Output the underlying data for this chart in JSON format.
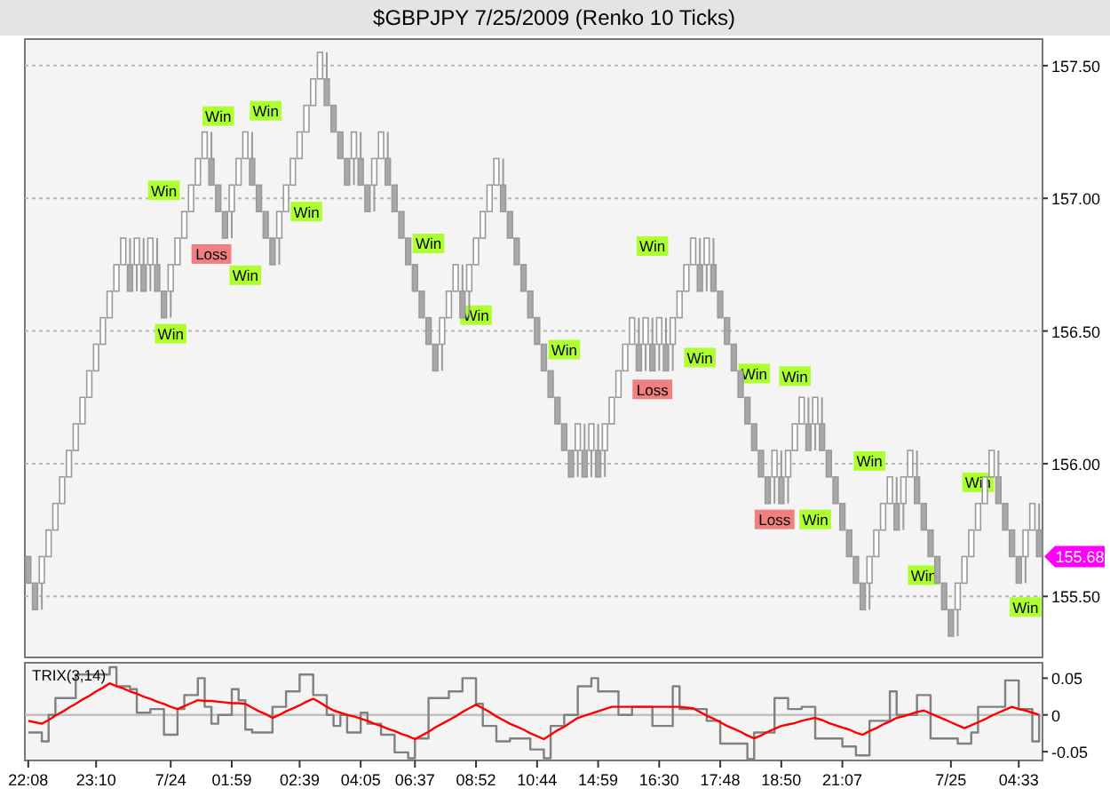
{
  "chart_data": [
    {
      "type": "candlestick",
      "title": "$GBPJPY  7/25/2009 (Renko 10 Ticks)",
      "categories": [
        null,
        null,
        null,
        null,
        null,
        null,
        null,
        null,
        null,
        null,
        null,
        null,
        null,
        null,
        null,
        null,
        null,
        null,
        null,
        null,
        null,
        null,
        null,
        null,
        null,
        null,
        null,
        null,
        null,
        null,
        null,
        null,
        null,
        null,
        null,
        null,
        null,
        null,
        null,
        null,
        null,
        null,
        null,
        null,
        null,
        null,
        null,
        null,
        null,
        null,
        null,
        null,
        null,
        null,
        null,
        null,
        null,
        null,
        null,
        null,
        null,
        null,
        null,
        null,
        null,
        null,
        null,
        null,
        null,
        null,
        null,
        null,
        null,
        null,
        null,
        null,
        null,
        null,
        null,
        null,
        null,
        null,
        null,
        null,
        null,
        null,
        null,
        null,
        null,
        null,
        null,
        null,
        null,
        null,
        null,
        null,
        null,
        null,
        null,
        null,
        null,
        null,
        null,
        null,
        null,
        null,
        null,
        null,
        null,
        null,
        null,
        null,
        null,
        null,
        null,
        null,
        null,
        null,
        null,
        null,
        null,
        null,
        null,
        null,
        null,
        null,
        null,
        null,
        null,
        null,
        null,
        null,
        null,
        null,
        null,
        null,
        null,
        null,
        null,
        null,
        null,
        null,
        null,
        null,
        null,
        null,
        null,
        null,
        null,
        null
      ],
      "ohlc": [
        [
          155.65,
          155.65,
          155.55,
          155.55
        ],
        [
          155.55,
          155.55,
          155.45,
          155.45
        ],
        [
          155.55,
          155.65,
          155.45,
          155.65
        ],
        [
          155.65,
          155.75,
          155.65,
          155.75
        ],
        [
          155.75,
          155.85,
          155.75,
          155.85
        ],
        [
          155.85,
          155.95,
          155.85,
          155.95
        ],
        [
          155.95,
          156.05,
          155.95,
          156.05
        ],
        [
          156.05,
          156.15,
          156.05,
          156.15
        ],
        [
          156.15,
          156.25,
          156.15,
          156.25
        ],
        [
          156.25,
          156.35,
          156.25,
          156.35
        ],
        [
          156.35,
          156.45,
          156.35,
          156.45
        ],
        [
          156.45,
          156.55,
          156.45,
          156.55
        ],
        [
          156.55,
          156.65,
          156.55,
          156.65
        ],
        [
          156.65,
          156.75,
          156.65,
          156.75
        ],
        [
          156.75,
          156.85,
          156.75,
          156.85
        ],
        [
          156.75,
          156.85,
          156.65,
          156.65
        ],
        [
          156.75,
          156.85,
          156.65,
          156.85
        ],
        [
          156.75,
          156.85,
          156.65,
          156.65
        ],
        [
          156.75,
          156.85,
          156.65,
          156.85
        ],
        [
          156.75,
          156.85,
          156.65,
          156.65
        ],
        [
          156.65,
          156.65,
          156.55,
          156.55
        ],
        [
          156.65,
          156.75,
          156.55,
          156.75
        ],
        [
          156.75,
          156.85,
          156.75,
          156.85
        ],
        [
          156.85,
          156.95,
          156.85,
          156.95
        ],
        [
          156.95,
          157.05,
          156.95,
          157.05
        ],
        [
          157.05,
          157.15,
          157.05,
          157.15
        ],
        [
          157.15,
          157.25,
          157.15,
          157.25
        ],
        [
          157.15,
          157.25,
          157.05,
          157.05
        ],
        [
          157.05,
          157.05,
          156.95,
          156.95
        ],
        [
          156.95,
          156.95,
          156.85,
          156.85
        ],
        [
          156.95,
          157.05,
          156.85,
          157.05
        ],
        [
          157.05,
          157.15,
          157.05,
          157.15
        ],
        [
          157.15,
          157.25,
          157.15,
          157.25
        ],
        [
          157.15,
          157.25,
          157.05,
          157.05
        ],
        [
          157.05,
          157.05,
          156.95,
          156.95
        ],
        [
          156.95,
          156.95,
          156.85,
          156.85
        ],
        [
          156.85,
          156.85,
          156.75,
          156.75
        ],
        [
          156.85,
          156.95,
          156.75,
          156.95
        ],
        [
          156.95,
          157.05,
          156.95,
          157.05
        ],
        [
          157.05,
          157.15,
          157.05,
          157.15
        ],
        [
          157.15,
          157.25,
          157.15,
          157.25
        ],
        [
          157.25,
          157.35,
          157.25,
          157.35
        ],
        [
          157.35,
          157.45,
          157.35,
          157.45
        ],
        [
          157.45,
          157.55,
          157.45,
          157.55
        ],
        [
          157.45,
          157.55,
          157.35,
          157.35
        ],
        [
          157.35,
          157.35,
          157.25,
          157.25
        ],
        [
          157.25,
          157.25,
          157.15,
          157.15
        ],
        [
          157.15,
          157.15,
          157.05,
          157.05
        ],
        [
          157.15,
          157.25,
          157.05,
          157.25
        ],
        [
          157.15,
          157.25,
          157.05,
          157.05
        ],
        [
          157.05,
          157.05,
          156.95,
          156.95
        ],
        [
          157.05,
          157.15,
          156.95,
          157.15
        ],
        [
          157.15,
          157.25,
          157.15,
          157.25
        ],
        [
          157.15,
          157.25,
          157.05,
          157.05
        ],
        [
          157.05,
          157.05,
          156.95,
          156.95
        ],
        [
          156.95,
          156.95,
          156.85,
          156.85
        ],
        [
          156.85,
          156.85,
          156.75,
          156.75
        ],
        [
          156.75,
          156.75,
          156.65,
          156.65
        ],
        [
          156.65,
          156.65,
          156.55,
          156.55
        ],
        [
          156.55,
          156.55,
          156.45,
          156.45
        ],
        [
          156.45,
          156.45,
          156.35,
          156.35
        ],
        [
          156.45,
          156.55,
          156.35,
          156.55
        ],
        [
          156.55,
          156.65,
          156.55,
          156.65
        ],
        [
          156.65,
          156.75,
          156.65,
          156.75
        ],
        [
          156.65,
          156.75,
          156.55,
          156.55
        ],
        [
          156.65,
          156.75,
          156.55,
          156.75
        ],
        [
          156.75,
          156.85,
          156.75,
          156.85
        ],
        [
          156.85,
          156.95,
          156.85,
          156.95
        ],
        [
          156.95,
          157.05,
          156.95,
          157.05
        ],
        [
          157.05,
          157.15,
          157.05,
          157.15
        ],
        [
          157.05,
          157.15,
          156.95,
          156.95
        ],
        [
          156.95,
          156.95,
          156.85,
          156.85
        ],
        [
          156.85,
          156.85,
          156.75,
          156.75
        ],
        [
          156.75,
          156.75,
          156.65,
          156.65
        ],
        [
          156.65,
          156.65,
          156.55,
          156.55
        ],
        [
          156.55,
          156.55,
          156.45,
          156.45
        ],
        [
          156.45,
          156.45,
          156.35,
          156.35
        ],
        [
          156.35,
          156.35,
          156.25,
          156.25
        ],
        [
          156.25,
          156.25,
          156.15,
          156.15
        ],
        [
          156.15,
          156.15,
          156.05,
          156.05
        ],
        [
          156.05,
          156.05,
          155.95,
          155.95
        ],
        [
          156.05,
          156.15,
          155.95,
          156.15
        ],
        [
          156.05,
          156.15,
          155.95,
          155.95
        ],
        [
          156.05,
          156.15,
          155.95,
          156.15
        ],
        [
          156.05,
          156.15,
          155.95,
          155.95
        ],
        [
          156.05,
          156.15,
          155.95,
          156.15
        ],
        [
          156.15,
          156.25,
          156.15,
          156.25
        ],
        [
          156.25,
          156.35,
          156.25,
          156.35
        ],
        [
          156.35,
          156.45,
          156.35,
          156.45
        ],
        [
          156.45,
          156.55,
          156.45,
          156.55
        ],
        [
          156.45,
          156.55,
          156.35,
          156.35
        ],
        [
          156.45,
          156.55,
          156.35,
          156.55
        ],
        [
          156.45,
          156.55,
          156.35,
          156.35
        ],
        [
          156.45,
          156.55,
          156.35,
          156.55
        ],
        [
          156.45,
          156.55,
          156.35,
          156.35
        ],
        [
          156.45,
          156.55,
          156.35,
          156.55
        ],
        [
          156.55,
          156.65,
          156.55,
          156.65
        ],
        [
          156.65,
          156.75,
          156.65,
          156.75
        ],
        [
          156.75,
          156.85,
          156.75,
          156.85
        ],
        [
          156.75,
          156.85,
          156.65,
          156.65
        ],
        [
          156.75,
          156.85,
          156.65,
          156.85
        ],
        [
          156.75,
          156.85,
          156.65,
          156.65
        ],
        [
          156.65,
          156.65,
          156.55,
          156.55
        ],
        [
          156.55,
          156.55,
          156.45,
          156.45
        ],
        [
          156.45,
          156.45,
          156.35,
          156.35
        ],
        [
          156.35,
          156.35,
          156.25,
          156.25
        ],
        [
          156.25,
          156.25,
          156.15,
          156.15
        ],
        [
          156.15,
          156.15,
          156.05,
          156.05
        ],
        [
          156.05,
          156.05,
          155.95,
          155.95
        ],
        [
          155.95,
          155.95,
          155.85,
          155.85
        ],
        [
          155.95,
          156.05,
          155.85,
          156.05
        ],
        [
          155.95,
          156.05,
          155.85,
          155.85
        ],
        [
          155.95,
          156.05,
          155.85,
          156.05
        ],
        [
          156.05,
          156.15,
          156.05,
          156.15
        ],
        [
          156.15,
          156.25,
          156.15,
          156.25
        ],
        [
          156.15,
          156.25,
          156.05,
          156.05
        ],
        [
          156.15,
          156.25,
          156.05,
          156.25
        ],
        [
          156.15,
          156.25,
          156.05,
          156.05
        ],
        [
          156.05,
          156.05,
          155.95,
          155.95
        ],
        [
          155.95,
          155.95,
          155.85,
          155.85
        ],
        [
          155.85,
          155.85,
          155.75,
          155.75
        ],
        [
          155.75,
          155.75,
          155.65,
          155.65
        ],
        [
          155.65,
          155.65,
          155.55,
          155.55
        ],
        [
          155.55,
          155.55,
          155.45,
          155.45
        ],
        [
          155.55,
          155.65,
          155.45,
          155.65
        ],
        [
          155.65,
          155.75,
          155.65,
          155.75
        ],
        [
          155.75,
          155.85,
          155.75,
          155.85
        ],
        [
          155.85,
          155.95,
          155.85,
          155.95
        ],
        [
          155.85,
          155.95,
          155.75,
          155.75
        ],
        [
          155.85,
          155.95,
          155.75,
          155.95
        ],
        [
          155.95,
          156.05,
          155.95,
          156.05
        ],
        [
          155.95,
          156.05,
          155.85,
          155.85
        ],
        [
          155.85,
          155.85,
          155.75,
          155.75
        ],
        [
          155.75,
          155.75,
          155.65,
          155.65
        ],
        [
          155.65,
          155.65,
          155.55,
          155.55
        ],
        [
          155.55,
          155.55,
          155.45,
          155.45
        ],
        [
          155.45,
          155.45,
          155.35,
          155.35
        ],
        [
          155.45,
          155.55,
          155.35,
          155.55
        ],
        [
          155.55,
          155.65,
          155.55,
          155.65
        ],
        [
          155.65,
          155.75,
          155.65,
          155.75
        ],
        [
          155.75,
          155.85,
          155.75,
          155.85
        ],
        [
          155.85,
          155.95,
          155.85,
          155.95
        ],
        [
          155.95,
          156.05,
          155.95,
          156.05
        ],
        [
          155.95,
          156.05,
          155.85,
          155.85
        ],
        [
          155.85,
          155.85,
          155.75,
          155.75
        ],
        [
          155.75,
          155.75,
          155.65,
          155.65
        ],
        [
          155.65,
          155.65,
          155.55,
          155.55
        ],
        [
          155.65,
          155.75,
          155.55,
          155.75
        ],
        [
          155.75,
          155.85,
          155.75,
          155.85
        ],
        [
          155.75,
          155.85,
          155.65,
          155.65
        ]
      ],
      "series": [
        {
          "type": "scatter",
          "name": "Win",
          "color": "#adff2f",
          "values": [
            null,
            null,
            null,
            null,
            null,
            null,
            null,
            null,
            null,
            null,
            null,
            null,
            null,
            null,
            null,
            null,
            null,
            null,
            null,
            null,
            157.03,
            156.49,
            null,
            null,
            null,
            null,
            null,
            null,
            157.31,
            null,
            null,
            null,
            156.71,
            null,
            null,
            157.33,
            null,
            null,
            null,
            null,
            null,
            156.95,
            null,
            null,
            null,
            null,
            null,
            null,
            null,
            null,
            null,
            null,
            null,
            null,
            null,
            null,
            null,
            null,
            null,
            156.83,
            null,
            null,
            null,
            null,
            null,
            null,
            156.56,
            null,
            null,
            null,
            null,
            null,
            null,
            null,
            null,
            null,
            null,
            null,
            null,
            156.43,
            null,
            null,
            null,
            null,
            null,
            null,
            null,
            null,
            null,
            null,
            null,
            null,
            156.82,
            null,
            null,
            null,
            null,
            null,
            null,
            156.4,
            null,
            null,
            null,
            null,
            null,
            null,
            null,
            156.34,
            null,
            null,
            null,
            null,
            null,
            156.33,
            null,
            null,
            155.79,
            null,
            null,
            null,
            null,
            null,
            null,
            null,
            156.01,
            null,
            null,
            null,
            null,
            null,
            null,
            null,
            155.58,
            null,
            null,
            null,
            null,
            null,
            null,
            null,
            155.93,
            null,
            null,
            null,
            null,
            null,
            null,
            155.46,
            null,
            null
          ]
        },
        {
          "type": "scatter",
          "name": "Loss",
          "color": "#f08080",
          "values": [
            null,
            null,
            null,
            null,
            null,
            null,
            null,
            null,
            null,
            null,
            null,
            null,
            null,
            null,
            null,
            null,
            null,
            null,
            null,
            null,
            null,
            null,
            null,
            null,
            null,
            null,
            null,
            156.79,
            null,
            null,
            null,
            null,
            null,
            null,
            null,
            null,
            null,
            null,
            null,
            null,
            null,
            null,
            null,
            null,
            null,
            null,
            null,
            null,
            null,
            null,
            null,
            null,
            null,
            null,
            null,
            null,
            null,
            null,
            null,
            null,
            null,
            null,
            null,
            null,
            null,
            null,
            null,
            null,
            null,
            null,
            null,
            null,
            null,
            null,
            null,
            null,
            null,
            null,
            null,
            null,
            null,
            null,
            null,
            null,
            null,
            null,
            null,
            null,
            null,
            null,
            null,
            null,
            156.28,
            null,
            null,
            null,
            null,
            null,
            null,
            null,
            null,
            null,
            null,
            null,
            null,
            null,
            null,
            null,
            null,
            null,
            155.79,
            null,
            null,
            null,
            null,
            null,
            null,
            null,
            null,
            null,
            null,
            null,
            null,
            null,
            null,
            null,
            null,
            null,
            null,
            null,
            null,
            null,
            null,
            null,
            null,
            null,
            null,
            null,
            null,
            null,
            null,
            null,
            null,
            null,
            null,
            null,
            null,
            null,
            null,
            null
          ]
        }
      ],
      "ylim": [
        155.27,
        157.6
      ],
      "yticks": [
        {
          "value": 155.5,
          "label": "155.50"
        },
        {
          "value": 156,
          "label": "156.00"
        },
        {
          "value": 156.5,
          "label": "156.50"
        },
        {
          "value": 157,
          "label": "157.00"
        },
        {
          "value": 157.5,
          "label": "157.50"
        }
      ],
      "grid": "y",
      "tick_labels": "y",
      "annotations": [
        "155.68"
      ]
    },
    {
      "type": "step",
      "title": "TRIX(3,14)",
      "categories": [
        "22:08",
        null,
        null,
        null,
        null,
        null,
        null,
        null,
        null,
        null,
        "23:10",
        null,
        null,
        null,
        null,
        null,
        null,
        null,
        null,
        null,
        null,
        "7/24",
        null,
        null,
        null,
        null,
        null,
        null,
        null,
        null,
        "01:59",
        null,
        null,
        null,
        null,
        null,
        null,
        null,
        null,
        null,
        "02:39",
        null,
        null,
        null,
        null,
        null,
        null,
        null,
        null,
        "04:05",
        null,
        null,
        null,
        null,
        null,
        null,
        null,
        "06:37",
        null,
        null,
        null,
        null,
        null,
        null,
        null,
        null,
        "08:52",
        null,
        null,
        null,
        null,
        null,
        null,
        null,
        null,
        "10:44",
        null,
        null,
        null,
        null,
        null,
        null,
        null,
        null,
        "14:59",
        null,
        null,
        null,
        null,
        null,
        null,
        null,
        null,
        "16:30",
        null,
        null,
        null,
        null,
        null,
        null,
        null,
        null,
        "17:48",
        null,
        null,
        null,
        null,
        null,
        null,
        null,
        null,
        "18:50",
        null,
        null,
        null,
        null,
        null,
        null,
        null,
        null,
        "21:07",
        null,
        null,
        null,
        null,
        null,
        null,
        null,
        null,
        null,
        null,
        null,
        null,
        null,
        null,
        null,
        "7/25",
        null,
        null,
        null,
        null,
        null,
        null,
        null,
        null,
        null,
        "04:33",
        null,
        null,
        null
      ],
      "series": [
        {
          "color": "#808080",
          "values": [
            -0.024,
            -0.024,
            -0.036,
            0,
            0.023,
            0.023,
            0.023,
            0.055,
            0.055,
            0.055,
            0.055,
            0.055,
            0.065,
            0.039,
            0.039,
            0.035,
            0.003,
            0.003,
            0.008,
            0.008,
            -0.027,
            -0.027,
            0.008,
            0.027,
            0.027,
            0.05,
            0.011,
            -0.012,
            0,
            0,
            0.035,
            0.02,
            -0.02,
            -0.024,
            -0.024,
            -0.024,
            0.011,
            0.011,
            0.032,
            0.032,
            0.055,
            0.055,
            0.027,
            0.027,
            0,
            -0.015,
            0,
            -0.024,
            -0.024,
            0.003,
            -0.012,
            -0.012,
            -0.027,
            -0.027,
            -0.051,
            -0.051,
            -0.059,
            -0.032,
            -0.032,
            0.023,
            0.023,
            0.023,
            0.032,
            0.032,
            0.05,
            0.05,
            0.015,
            -0.015,
            -0.015,
            -0.036,
            -0.036,
            -0.032,
            -0.032,
            -0.032,
            -0.047,
            -0.047,
            -0.059,
            -0.015,
            -0.015,
            0,
            0,
            0.039,
            0.039,
            0.05,
            0.032,
            0.032,
            0.032,
            0,
            0,
            0.011,
            0.011,
            0.011,
            -0.015,
            -0.015,
            -0.015,
            0.039,
            0.008,
            0.008,
            0.008,
            0.008,
            -0.008,
            -0.008,
            -0.039,
            -0.039,
            -0.039,
            -0.039,
            -0.06,
            -0.024,
            -0.024,
            -0.024,
            0.023,
            0.023,
            0.008,
            0.008,
            0.011,
            0.011,
            -0.032,
            -0.032,
            -0.032,
            -0.032,
            -0.043,
            -0.043,
            -0.055,
            -0.055,
            -0.008,
            -0.008,
            -0.008,
            0.032,
            0,
            0,
            0,
            0.027,
            0.027,
            -0.032,
            -0.032,
            -0.032,
            -0.032,
            -0.039,
            -0.039,
            -0.024,
            0.011,
            0.011,
            0.011,
            0.011,
            0.047,
            0.047,
            0.008,
            0.008,
            -0.036,
            0
          ]
        },
        {
          "type": "line",
          "color": "#ff0000",
          "values": [
            -0.008,
            -0.01,
            -0.012,
            -0.007,
            -0.001,
            0.004,
            0.01,
            0.015,
            0.021,
            0.026,
            0.032,
            0.037,
            0.043,
            0.039,
            0.036,
            0.032,
            0.029,
            0.025,
            0.022,
            0.018,
            0.015,
            0.011,
            0.008,
            0.012,
            0.016,
            0.02,
            0.019,
            0.019,
            0.018,
            0.017,
            0.016,
            0.016,
            0.015,
            0.01,
            0.005,
            0.001,
            -0.004,
            0.0,
            0.005,
            0.009,
            0.013,
            0.018,
            0.022,
            0.017,
            0.011,
            0.006,
            0.003,
            0.0,
            -0.002,
            -0.005,
            -0.008,
            -0.012,
            -0.015,
            -0.019,
            -0.022,
            -0.026,
            -0.029,
            -0.033,
            -0.028,
            -0.023,
            -0.017,
            -0.012,
            -0.007,
            -0.002,
            0.004,
            0.009,
            0.014,
            0.009,
            0.004,
            -0.002,
            -0.007,
            -0.012,
            -0.016,
            -0.02,
            -0.025,
            -0.029,
            -0.033,
            -0.027,
            -0.021,
            -0.016,
            -0.01,
            -0.004,
            -0.001,
            0.002,
            0.005,
            0.008,
            0.011,
            0.011,
            0.011,
            0.011,
            0.011,
            0.011,
            0.011,
            0.011,
            0.011,
            0.011,
            0.011,
            0.01,
            0.009,
            0.004,
            -0.001,
            -0.005,
            -0.01,
            -0.015,
            -0.019,
            -0.023,
            -0.028,
            -0.032,
            -0.028,
            -0.023,
            -0.019,
            -0.015,
            -0.013,
            -0.011,
            -0.008,
            -0.006,
            -0.004,
            -0.007,
            -0.011,
            -0.014,
            -0.017,
            -0.02,
            -0.024,
            -0.027,
            -0.022,
            -0.018,
            -0.013,
            -0.009,
            -0.004,
            -0.002,
            0.001,
            0.004,
            0.006,
            0.002,
            -0.002,
            -0.006,
            -0.01,
            -0.014,
            -0.018,
            -0.014,
            -0.01,
            -0.006,
            -0.001,
            0.003,
            0.007,
            0.011,
            0.008,
            0.006,
            0.003,
            0.0
          ]
        }
      ],
      "ylim": [
        -0.062,
        0.071
      ],
      "yticks": [
        {
          "value": -0.05,
          "label": "-0.05"
        },
        0,
        {
          "value": 0.05,
          "label": "0.05"
        }
      ],
      "ref_lines": [
        {
          "axis": "y",
          "value": 0,
          "color": "#c0c0c0"
        }
      ]
    }
  ]
}
